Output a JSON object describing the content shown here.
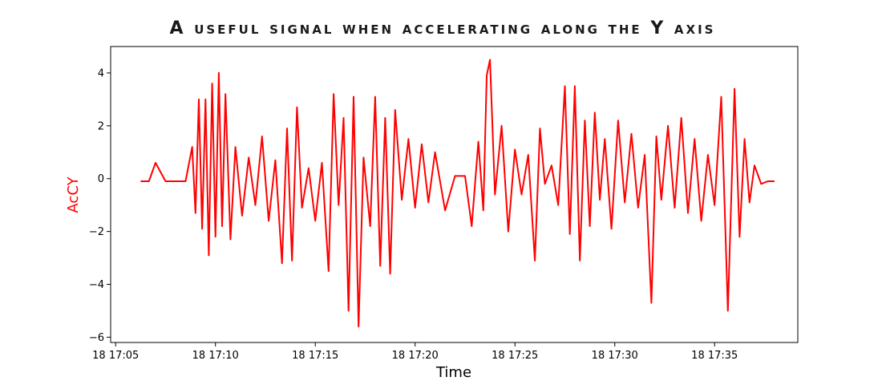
{
  "chart_data": {
    "type": "line",
    "title": "A useful signal when accelerating along the Y axis",
    "xlabel": "Time",
    "ylabel": "AcCY",
    "ylim": [
      -6.2,
      5.0
    ],
    "xlim": [
      "18 17:04:45",
      "18 17:39:10"
    ],
    "yticks": [
      4,
      2,
      0,
      -2,
      -4,
      -6
    ],
    "ytick_labels": [
      "4",
      "2",
      "0",
      "−2",
      "−4",
      "−6"
    ],
    "xticks": [
      "18 17:05:00",
      "18 17:10:00",
      "18 17:15:00",
      "18 17:20:00",
      "18 17:25:00",
      "18 17:30:00",
      "18 17:35:00"
    ],
    "xtick_labels": [
      "18 17:05",
      "18 17:10",
      "18 17:15",
      "18 17:20",
      "18 17:25",
      "18 17:30",
      "18 17:35"
    ],
    "grid": false,
    "legend": "none",
    "series": [
      {
        "color": "#ff0000",
        "x": [
          "18 17:06:15",
          "18 17:06:40",
          "18 17:07:00",
          "18 17:07:30",
          "18 17:08:00",
          "18 17:08:30",
          "18 17:08:50",
          "18 17:09:00",
          "18 17:09:10",
          "18 17:09:20",
          "18 17:09:30",
          "18 17:09:40",
          "18 17:09:50",
          "18 17:10:00",
          "18 17:10:10",
          "18 17:10:20",
          "18 17:10:30",
          "18 17:10:45",
          "18 17:11:00",
          "18 17:11:20",
          "18 17:11:40",
          "18 17:12:00",
          "18 17:12:20",
          "18 17:12:40",
          "18 17:13:00",
          "18 17:13:20",
          "18 17:13:35",
          "18 17:13:50",
          "18 17:14:05",
          "18 17:14:20",
          "18 17:14:40",
          "18 17:15:00",
          "18 17:15:20",
          "18 17:15:40",
          "18 17:15:55",
          "18 17:16:10",
          "18 17:16:25",
          "18 17:16:40",
          "18 17:16:55",
          "18 17:17:10",
          "18 17:17:25",
          "18 17:17:45",
          "18 17:18:00",
          "18 17:18:15",
          "18 17:18:30",
          "18 17:18:45",
          "18 17:19:00",
          "18 17:19:20",
          "18 17:19:40",
          "18 17:20:00",
          "18 17:20:20",
          "18 17:20:40",
          "18 17:21:00",
          "18 17:21:30",
          "18 17:22:00",
          "18 17:22:30",
          "18 17:22:50",
          "18 17:23:10",
          "18 17:23:25",
          "18 17:23:35",
          "18 17:23:45",
          "18 17:24:00",
          "18 17:24:20",
          "18 17:24:40",
          "18 17:25:00",
          "18 17:25:20",
          "18 17:25:40",
          "18 17:26:00",
          "18 17:26:15",
          "18 17:26:30",
          "18 17:26:50",
          "18 17:27:10",
          "18 17:27:30",
          "18 17:27:45",
          "18 17:28:00",
          "18 17:28:15",
          "18 17:28:30",
          "18 17:28:45",
          "18 17:29:00",
          "18 17:29:15",
          "18 17:29:30",
          "18 17:29:50",
          "18 17:30:10",
          "18 17:30:30",
          "18 17:30:50",
          "18 17:31:10",
          "18 17:31:30",
          "18 17:31:50",
          "18 17:32:05",
          "18 17:32:20",
          "18 17:32:40",
          "18 17:33:00",
          "18 17:33:20",
          "18 17:33:40",
          "18 17:34:00",
          "18 17:34:20",
          "18 17:34:40",
          "18 17:35:00",
          "18 17:35:20",
          "18 17:35:40",
          "18 17:36:00",
          "18 17:36:15",
          "18 17:36:30",
          "18 17:36:45",
          "18 17:37:00",
          "18 17:37:20",
          "18 17:37:40",
          "18 17:38:00"
        ],
        "y": [
          -0.1,
          -0.1,
          0.6,
          -0.1,
          -0.1,
          -0.1,
          1.2,
          -1.3,
          3.0,
          -1.9,
          3.0,
          -2.9,
          3.6,
          -2.2,
          4.0,
          -1.8,
          3.2,
          -2.3,
          1.2,
          -1.4,
          0.8,
          -1.0,
          1.6,
          -1.6,
          0.7,
          -3.2,
          1.9,
          -3.1,
          2.7,
          -1.1,
          0.4,
          -1.6,
          0.6,
          -3.5,
          3.2,
          -1.0,
          2.3,
          -5.0,
          3.1,
          -5.6,
          0.8,
          -1.8,
          3.1,
          -3.3,
          2.3,
          -3.6,
          2.6,
          -0.8,
          1.5,
          -1.1,
          1.3,
          -0.9,
          1.0,
          -1.2,
          0.1,
          0.1,
          -1.8,
          1.4,
          -1.2,
          3.9,
          4.5,
          -0.6,
          2.0,
          -2.0,
          1.1,
          -0.6,
          0.9,
          -3.1,
          1.9,
          -0.2,
          0.5,
          -1.0,
          3.5,
          -2.1,
          3.5,
          -3.1,
          2.2,
          -1.8,
          2.5,
          -0.8,
          1.5,
          -1.9,
          2.2,
          -0.9,
          1.7,
          -1.1,
          0.9,
          -4.7,
          1.6,
          -0.8,
          2.0,
          -1.1,
          2.3,
          -1.3,
          1.5,
          -1.6,
          0.9,
          -1.0,
          3.1,
          -5.0,
          3.4,
          -2.2,
          1.5,
          -0.9,
          0.5,
          -0.2,
          -0.1,
          -0.1
        ]
      }
    ]
  }
}
